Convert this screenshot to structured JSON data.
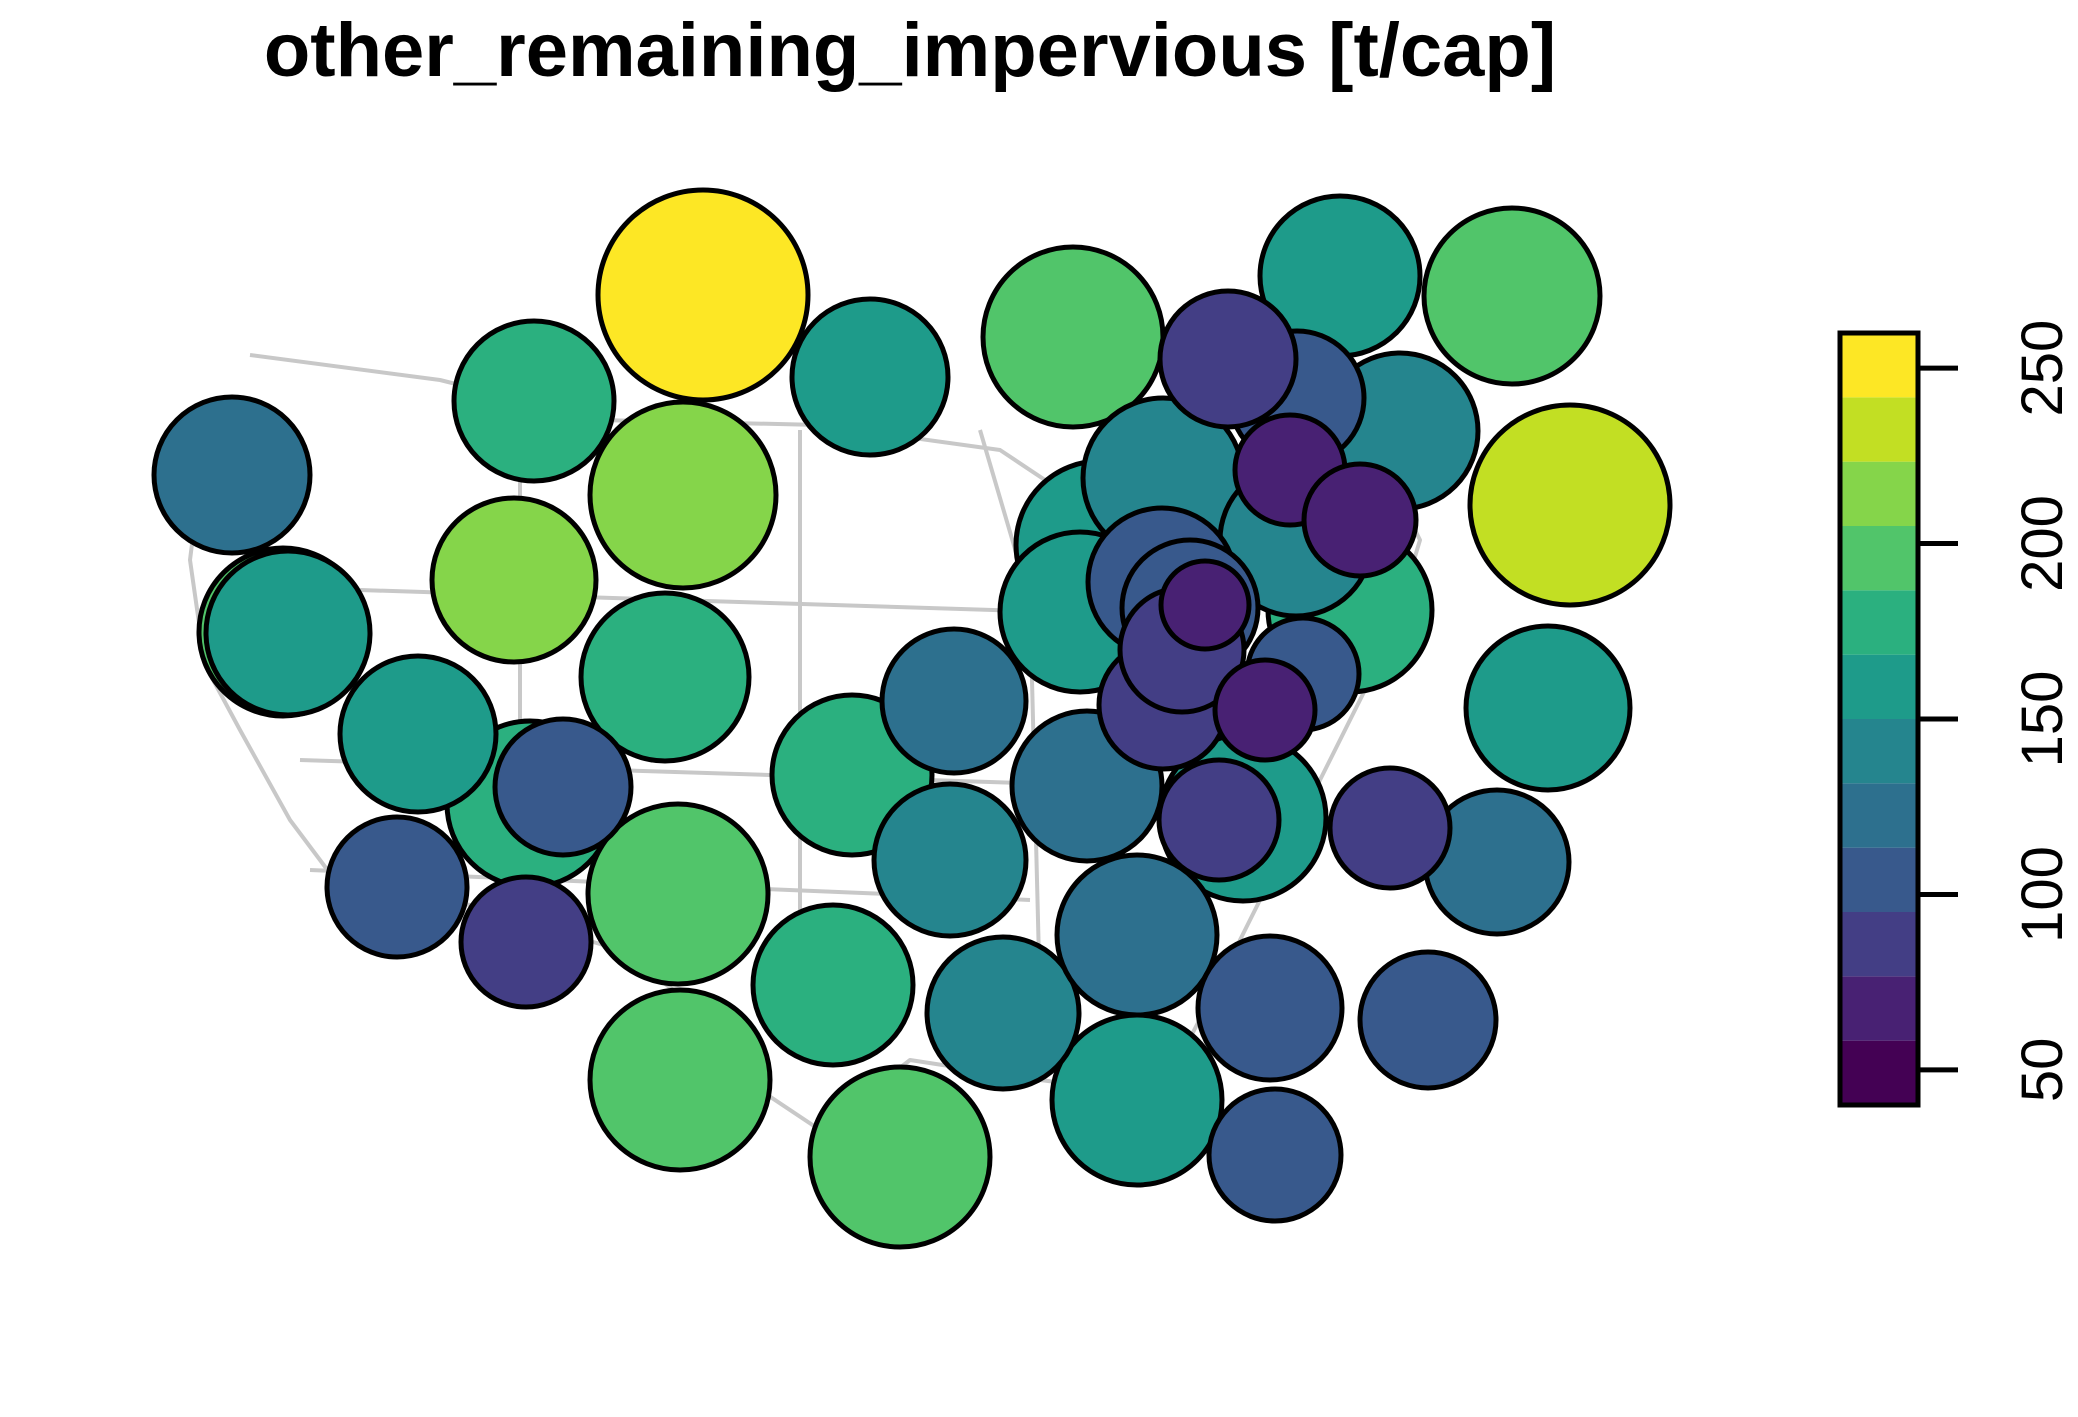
{
  "title": "other_remaining_impervious [t/cap]",
  "colors": {
    "bins": [
      "#440154",
      "#482173",
      "#433E85",
      "#38598C",
      "#2D708E",
      "#25858E",
      "#1E9B8A",
      "#2BB07F",
      "#51C56A",
      "#85D54A",
      "#C2DF23",
      "#FDE725"
    ],
    "outline": "#c8c8c8",
    "stroke": "#000000"
  },
  "legend": {
    "min": 40,
    "max": 260,
    "ticks": [
      50,
      100,
      150,
      200,
      250
    ],
    "tick_labels": [
      "50",
      "100",
      "150",
      "200",
      "250"
    ]
  },
  "chart_data": {
    "type": "proportional-circle-map",
    "title": "other_remaining_impervious [t/cap]",
    "colorbar_range": [
      40,
      260
    ],
    "values": [
      262,
      231,
      218,
      208,
      196,
      195,
      193,
      192,
      192,
      188,
      180,
      178,
      176,
      174,
      172,
      170,
      168,
      167,
      165,
      162,
      160,
      160,
      160,
      155,
      150,
      145,
      140,
      138,
      135,
      133,
      130,
      126,
      125,
      123,
      120,
      113,
      110,
      108,
      105,
      101,
      100,
      98,
      97,
      95,
      92,
      88,
      86,
      85,
      82,
      78,
      75,
      72,
      70,
      66,
      58,
      55
    ]
  }
}
